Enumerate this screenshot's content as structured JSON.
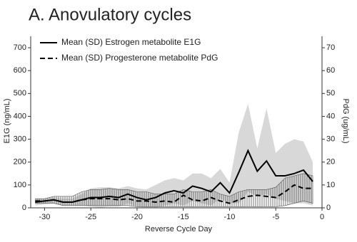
{
  "chart_data": {
    "type": "line",
    "title": "A.  Anovulatory cycles",
    "x_label": "Reverse Cycle Day",
    "y_label": "E1G (ng/mL)",
    "y2_label": "PdG (ug/mL)",
    "x": [
      -31,
      -30,
      -29,
      -28,
      -27,
      -26,
      -25,
      -24,
      -23,
      -22,
      -21,
      -20,
      -19,
      -18,
      -17,
      -16,
      -15,
      -14,
      -13,
      -12,
      -11,
      -10,
      -9,
      -8,
      -7,
      -6,
      -5,
      -4,
      -3,
      -2,
      -1
    ],
    "xlim": [
      -31.5,
      0
    ],
    "xticks": [
      -30,
      -25,
      -20,
      -15,
      -10,
      -5,
      0
    ],
    "ylim": [
      0,
      750
    ],
    "yticks": [
      0,
      100,
      200,
      300,
      400,
      500,
      600,
      700
    ],
    "y2lim": [
      0,
      75
    ],
    "y2ticks": [
      0,
      10,
      20,
      30,
      40,
      50,
      60,
      70
    ],
    "legend": "top-left",
    "series": [
      {
        "name": "Mean (SD) Estrogen metabolite E1G",
        "color": "#000000",
        "dash": "solid",
        "band_color": "#d4d4d4",
        "band_fill": "solid",
        "values": [
          25,
          30,
          35,
          25,
          25,
          35,
          45,
          45,
          50,
          45,
          60,
          45,
          35,
          45,
          65,
          75,
          65,
          95,
          85,
          70,
          110,
          65,
          155,
          250,
          160,
          205,
          140,
          140,
          150,
          165,
          115
        ],
        "upper": [
          40,
          40,
          45,
          40,
          40,
          60,
          85,
          90,
          90,
          85,
          95,
          85,
          80,
          100,
          120,
          130,
          120,
          150,
          150,
          130,
          170,
          110,
          330,
          455,
          260,
          435,
          240,
          280,
          300,
          290,
          200
        ],
        "lower": [
          10,
          15,
          20,
          10,
          10,
          10,
          5,
          0,
          5,
          5,
          20,
          5,
          0,
          0,
          10,
          20,
          10,
          30,
          20,
          10,
          40,
          20,
          20,
          70,
          50,
          60,
          40,
          30,
          20,
          20,
          10
        ]
      },
      {
        "name": "Mean (SD) Progesterone metabolite PdG",
        "color": "#000000",
        "dash": "dashed",
        "axis": "y2",
        "band_color": "#555555",
        "band_fill": "hatch",
        "values": [
          3,
          3,
          3.5,
          2.5,
          2.5,
          3.5,
          4,
          4,
          4,
          3.5,
          4,
          3,
          3,
          2.5,
          3,
          2.5,
          5.5,
          3.5,
          3,
          4.5,
          3,
          2,
          3.5,
          5,
          5.5,
          5,
          4.5,
          7,
          10,
          8.5,
          8.5
        ],
        "upper": [
          4,
          4,
          5,
          5,
          5,
          7,
          8,
          8,
          8.5,
          8,
          8,
          7,
          7,
          6,
          6,
          6,
          8,
          7,
          7,
          8,
          6,
          5,
          7,
          8,
          8,
          8,
          9,
          13,
          14,
          15,
          14
        ],
        "lower": [
          2,
          2,
          2,
          1,
          1,
          1,
          1,
          1,
          1,
          1,
          1,
          0.5,
          0.5,
          0.5,
          0.5,
          0.5,
          0.5,
          0.5,
          0.5,
          0.5,
          0.5,
          0.5,
          0.5,
          0.5,
          0.5,
          0.5,
          0.5,
          1,
          2,
          3,
          2
        ]
      }
    ]
  }
}
